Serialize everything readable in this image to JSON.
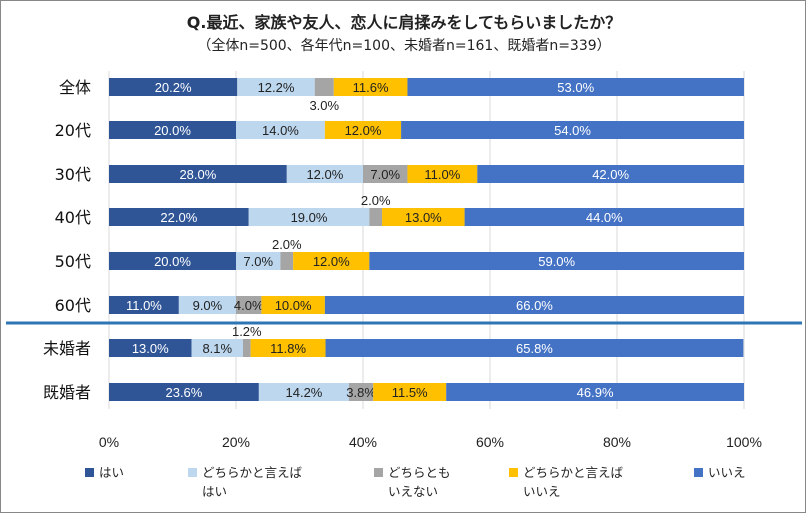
{
  "chart_data": {
    "type": "bar",
    "orientation": "horizontal-stacked-100",
    "title": "Q.最近、家族や友人、恋人に肩揉みをしてもらいましたか？",
    "subtitle": "（全体n=500、各年代n=100、未婚者n=161、既婚者n=339）",
    "categories": [
      "全体",
      "20代",
      "30代",
      "40代",
      "50代",
      "60代",
      "未婚者",
      "既婚者"
    ],
    "series": [
      {
        "name": "はい",
        "color": "#2F5597",
        "values": [
          20.2,
          20.0,
          28.0,
          22.0,
          20.0,
          11.0,
          13.0,
          23.6
        ]
      },
      {
        "name": "どちらかと言えばはい",
        "color": "#BDD7EE",
        "values": [
          12.2,
          14.0,
          12.0,
          19.0,
          7.0,
          9.0,
          8.1,
          14.2
        ]
      },
      {
        "name": "どちらともいえない",
        "color": "#A5A5A5",
        "values": [
          3.0,
          0.0,
          7.0,
          2.0,
          2.0,
          4.0,
          1.2,
          3.8
        ]
      },
      {
        "name": "どちらかと言えばいいえ",
        "color": "#FFC000",
        "values": [
          11.6,
          12.0,
          11.0,
          13.0,
          12.0,
          10.0,
          11.8,
          11.5
        ]
      },
      {
        "name": "いいえ",
        "color": "#4472C4",
        "values": [
          53.0,
          54.0,
          42.0,
          44.0,
          59.0,
          66.0,
          65.8,
          46.9
        ]
      }
    ],
    "xticks": [
      "0%",
      "20%",
      "40%",
      "60%",
      "80%",
      "100%"
    ],
    "xlim": [
      0,
      100
    ],
    "grid": true,
    "legend": "bottom",
    "divider_color": "#2E75B6"
  },
  "legend": [
    {
      "line1": "はい",
      "line2": ""
    },
    {
      "line1": "どちらかと言えば",
      "line2": "はい"
    },
    {
      "line1": "どちらとも",
      "line2": "いえない"
    },
    {
      "line1": "どちらかと言えば",
      "line2": "いいえ"
    },
    {
      "line1": "いいえ",
      "line2": ""
    }
  ]
}
